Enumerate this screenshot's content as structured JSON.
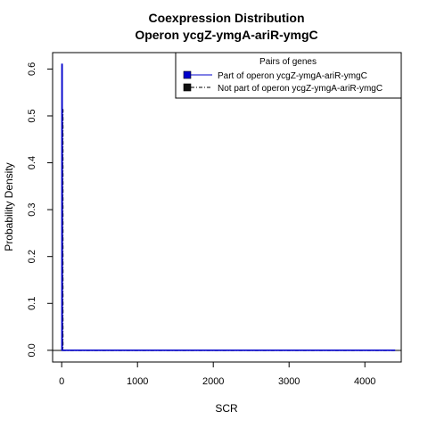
{
  "chart_data": {
    "type": "line",
    "title": "Coexpression Distribution",
    "subtitle": "Operon ycgZ-ymgA-ariR-ymgC",
    "xlabel": "SCR",
    "ylabel": "Probability Density",
    "xlim": [
      -120,
      4480
    ],
    "ylim": [
      -0.025,
      0.635
    ],
    "x_ticks": [
      0,
      1000,
      2000,
      3000,
      4000
    ],
    "y_ticks": [
      0.0,
      0.1,
      0.2,
      0.3,
      0.4,
      0.5,
      0.6
    ],
    "x_tick_labels": [
      "0",
      "1000",
      "2000",
      "3000",
      "4000"
    ],
    "y_tick_labels": [
      "0.0",
      "0.1",
      "0.2",
      "0.3",
      "0.4",
      "0.5",
      "0.6"
    ],
    "legend": {
      "title": "Pairs of genes",
      "position": "top-right",
      "entries": [
        "Part of operon ycgZ-ymgA-ariR-ymgC",
        "Not part of operon ycgZ-ymgA-ariR-ymgC"
      ]
    },
    "series": [
      {
        "name": "Part of operon ycgZ-ymgA-ariR-ymgC",
        "color": "#0000cc",
        "line_style": "solid",
        "x": [
          0,
          3,
          3,
          6,
          6,
          9,
          4400
        ],
        "y": [
          0,
          0,
          0.61,
          0.61,
          0,
          0,
          0
        ]
      },
      {
        "name": "Not part of operon ycgZ-ymgA-ariR-ymgC",
        "color": "#000000",
        "line_style": "dashdot",
        "x": [
          0,
          10,
          10,
          14,
          14,
          18,
          4400
        ],
        "y": [
          0,
          0,
          0.513,
          0.513,
          0,
          0,
          0
        ]
      }
    ]
  }
}
